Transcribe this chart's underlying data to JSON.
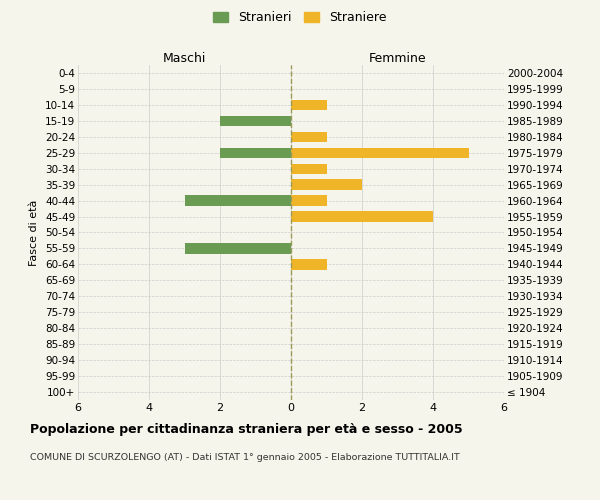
{
  "age_groups": [
    "0-4",
    "5-9",
    "10-14",
    "15-19",
    "20-24",
    "25-29",
    "30-34",
    "35-39",
    "40-44",
    "45-49",
    "50-54",
    "55-59",
    "60-64",
    "65-69",
    "70-74",
    "75-79",
    "80-84",
    "85-89",
    "90-94",
    "95-99",
    "100+"
  ],
  "birth_years": [
    "2000-2004",
    "1995-1999",
    "1990-1994",
    "1985-1989",
    "1980-1984",
    "1975-1979",
    "1970-1974",
    "1965-1969",
    "1960-1964",
    "1955-1959",
    "1950-1954",
    "1945-1949",
    "1940-1944",
    "1935-1939",
    "1930-1934",
    "1925-1929",
    "1920-1924",
    "1915-1919",
    "1910-1914",
    "1905-1909",
    "≤ 1904"
  ],
  "males": [
    0,
    0,
    0,
    2,
    0,
    2,
    0,
    0,
    3,
    0,
    0,
    3,
    0,
    0,
    0,
    0,
    0,
    0,
    0,
    0,
    0
  ],
  "females": [
    0,
    0,
    1,
    0,
    1,
    5,
    1,
    2,
    1,
    4,
    0,
    0,
    1,
    0,
    0,
    0,
    0,
    0,
    0,
    0,
    0
  ],
  "male_color": "#6a9b52",
  "female_color": "#f0b429",
  "title": "Popolazione per cittadinanza straniera per età e sesso - 2005",
  "subtitle": "COMUNE DI SCURZOLENGO (AT) - Dati ISTAT 1° gennaio 2005 - Elaborazione TUTTITALIA.IT",
  "xlabel_left": "Maschi",
  "xlabel_right": "Femmine",
  "ylabel_left": "Fasce di età",
  "legend_male": "Stranieri",
  "legend_female": "Straniere",
  "xlim": 6,
  "background_color": "#f5f5eb",
  "grid_color": "#cccccc"
}
